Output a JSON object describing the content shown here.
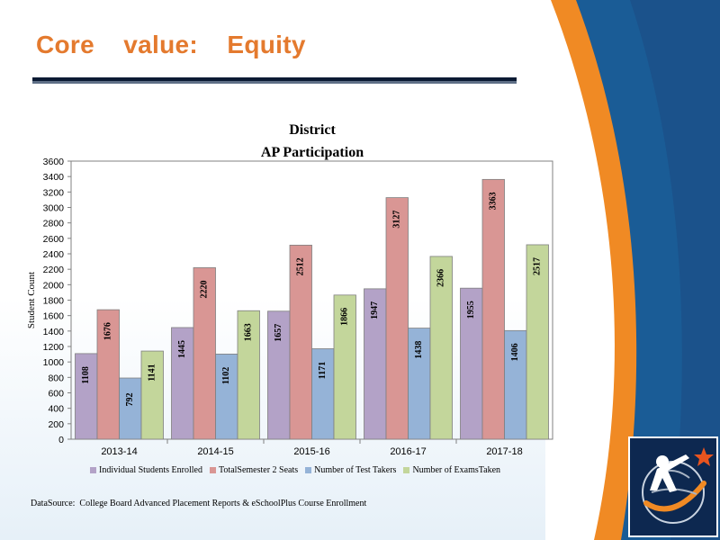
{
  "slide": {
    "title": "Core    value:    Equity",
    "data_source": "DataSource:  College Board Advanced Placement Reports & eSchoolPlus Course Enrollment",
    "colors": {
      "title": "#e47a2e",
      "panel_blue": "#1a5c96",
      "panel_orange": "#f08a24"
    }
  },
  "logo": {
    "icon": "student-globe-star-logo"
  },
  "chart_data": {
    "type": "bar",
    "title": "District",
    "subtitle": "AP Participation",
    "ylabel": "Student  Count",
    "xlabel": "",
    "ylim": [
      0,
      3600
    ],
    "yticks": [
      0,
      200,
      400,
      600,
      800,
      1000,
      1200,
      1400,
      1600,
      1800,
      2000,
      2200,
      2400,
      2600,
      2800,
      3000,
      3200,
      3400,
      3600
    ],
    "categories": [
      "2013-14",
      "2014-15",
      "2015-16",
      "2016-17",
      "2017-18"
    ],
    "grid": false,
    "legend_position": "bottom",
    "series": [
      {
        "name": "Individual Students  Enrolled",
        "color": "#b3a2c7",
        "values": [
          1108,
          1445,
          1657,
          1947,
          1955
        ]
      },
      {
        "name": "TotalSemester  2 Seats",
        "color": "#d99694",
        "values": [
          1676,
          2220,
          2512,
          3127,
          3363
        ]
      },
      {
        "name": "Number  of Test Takers",
        "color": "#95b3d7",
        "values": [
          792,
          1102,
          1171,
          1438,
          1406
        ]
      },
      {
        "name": "Number of ExamsTaken",
        "color": "#c3d69b",
        "values": [
          1141,
          1663,
          1866,
          2366,
          2517
        ]
      }
    ]
  }
}
